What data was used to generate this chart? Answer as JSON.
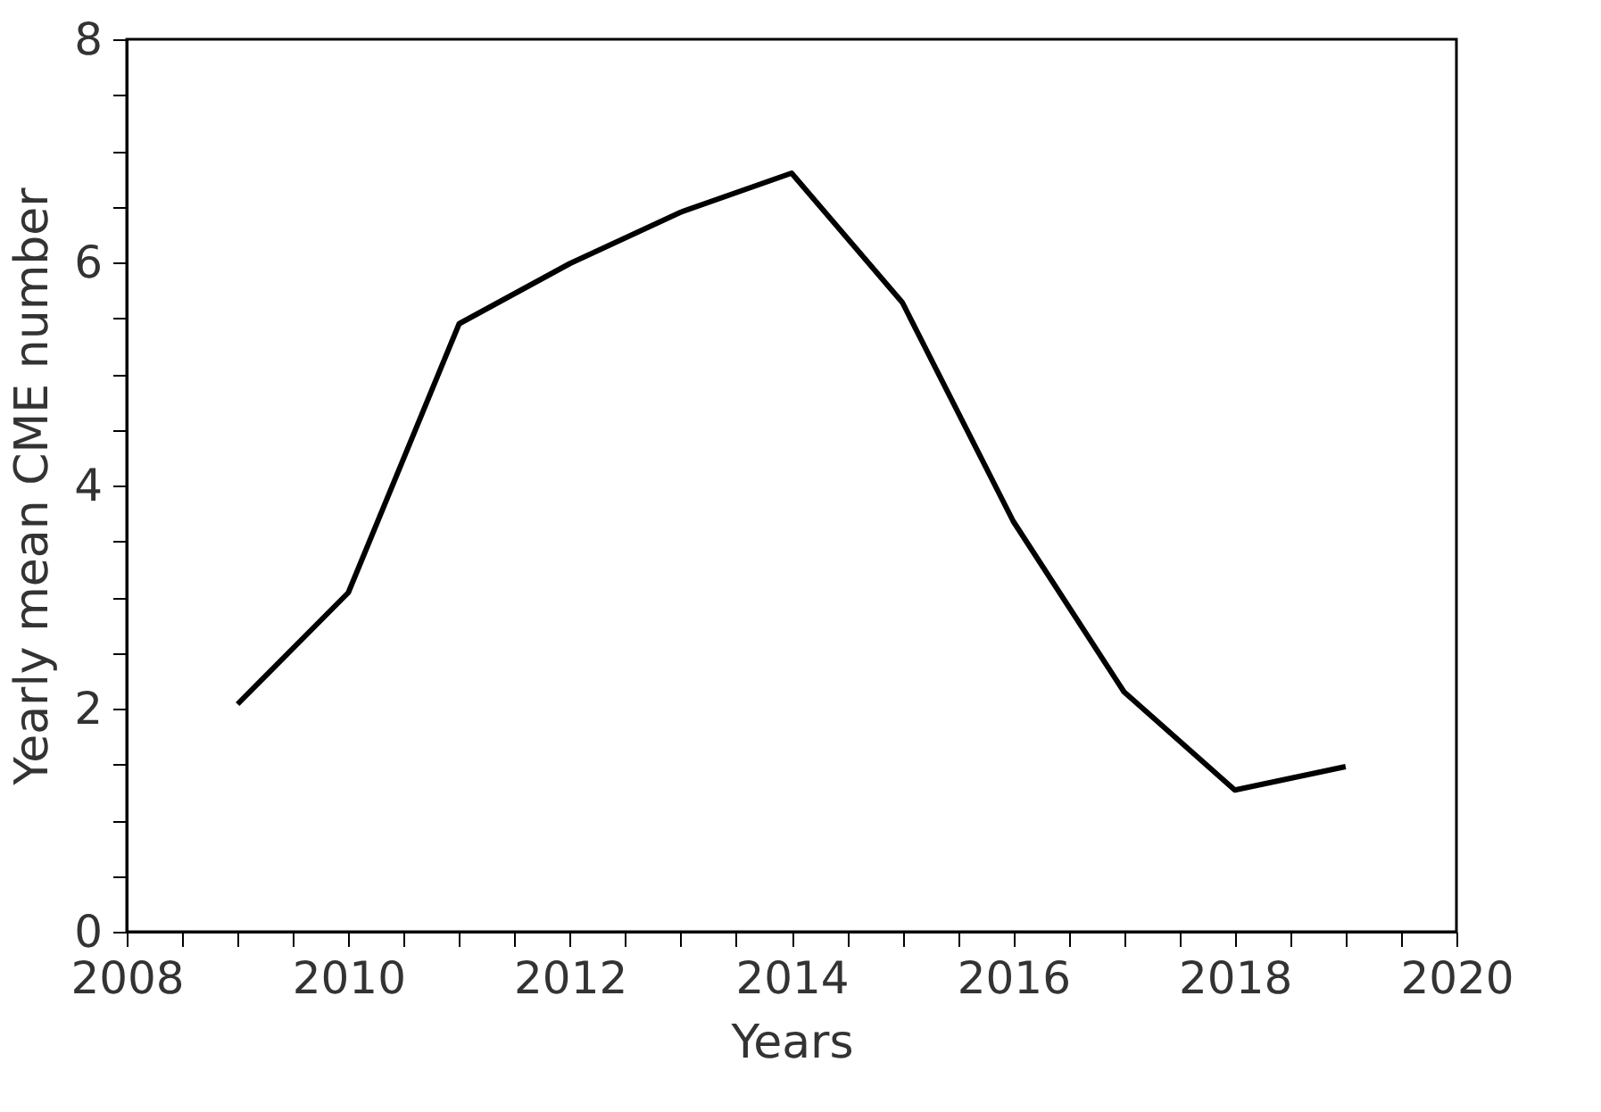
{
  "chart_data": {
    "type": "line",
    "xlabel": "Years",
    "ylabel": "Yearly mean CME number",
    "x": [
      2009,
      2010,
      2011,
      2012,
      2013,
      2014,
      2015,
      2016,
      2017,
      2018,
      2019
    ],
    "series": [
      {
        "color": "#000000",
        "values": [
          2.04,
          3.04,
          5.45,
          5.99,
          6.45,
          6.8,
          5.64,
          3.68,
          2.15,
          1.27,
          1.48
        ]
      }
    ],
    "xlim": [
      2008,
      2020
    ],
    "xticks": [
      2008,
      {
        "value": 2008.5,
        "label": null
      },
      {
        "value": 2009,
        "label": null
      },
      {
        "value": 2009.5,
        "label": null
      },
      2010,
      {
        "value": 2010.5,
        "label": null
      },
      {
        "value": 2011,
        "label": null
      },
      {
        "value": 2011.5,
        "label": null
      },
      2012,
      {
        "value": 2012.5,
        "label": null
      },
      {
        "value": 2013,
        "label": null
      },
      {
        "value": 2013.5,
        "label": null
      },
      2014,
      {
        "value": 2014.5,
        "label": null
      },
      {
        "value": 2015,
        "label": null
      },
      {
        "value": 2015.5,
        "label": null
      },
      2016,
      {
        "value": 2016.5,
        "label": null
      },
      {
        "value": 2017,
        "label": null
      },
      {
        "value": 2017.5,
        "label": null
      },
      2018,
      {
        "value": 2018.5,
        "label": null
      },
      {
        "value": 2019,
        "label": null
      },
      {
        "value": 2019.5,
        "label": null
      },
      2020
    ],
    "ylim": [
      0,
      8
    ],
    "yticks": [
      0,
      {
        "value": 0.5,
        "label": null
      },
      {
        "value": 1,
        "label": null
      },
      {
        "value": 1.5,
        "label": null
      },
      2,
      {
        "value": 2.5,
        "label": null
      },
      {
        "value": 3,
        "label": null
      },
      {
        "value": 3.5,
        "label": null
      },
      4,
      {
        "value": 4.5,
        "label": null
      },
      {
        "value": 5,
        "label": null
      },
      {
        "value": 5.5,
        "label": null
      },
      6,
      {
        "value": 6.5,
        "label": null
      },
      {
        "value": 7,
        "label": null
      },
      {
        "value": 7.5,
        "label": null
      },
      8
    ],
    "grid": false,
    "marker": "none",
    "line_style": "solid"
  }
}
